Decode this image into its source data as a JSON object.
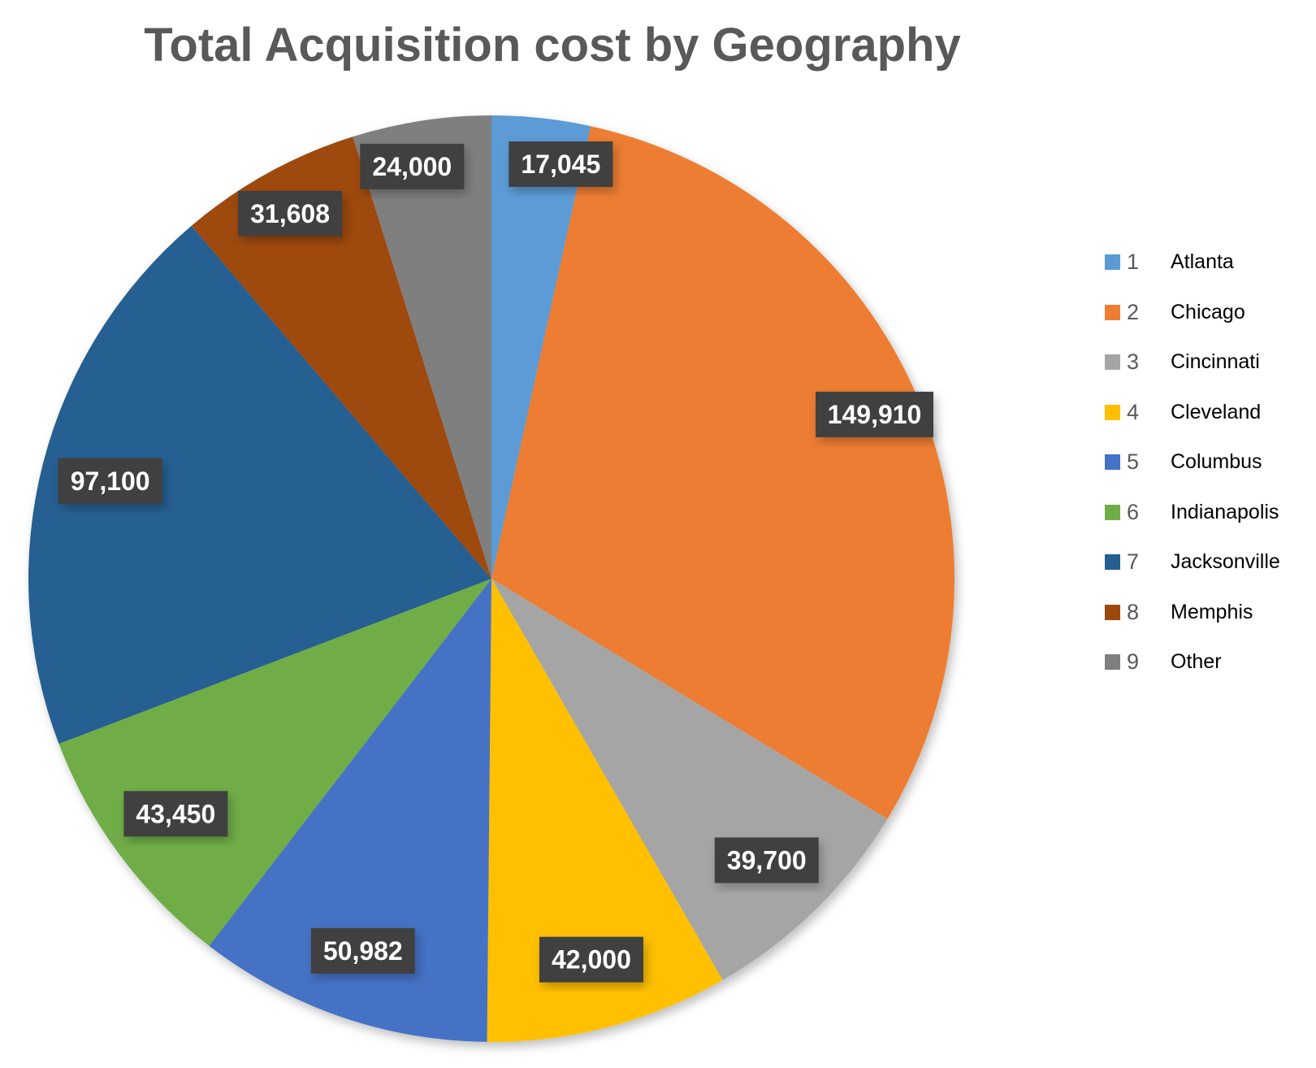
{
  "chart_data": {
    "type": "pie",
    "title": "Total Acquisition cost by Geography",
    "start_angle": "12 o'clock, clockwise",
    "legend_position": "right",
    "slices": [
      {
        "num": "1",
        "name": "Atlanta",
        "value": 17045,
        "label": "17,045",
        "color": "#5B9BD5"
      },
      {
        "num": "2",
        "name": "Chicago",
        "value": 149910,
        "label": "149,910",
        "color": "#ED7D31"
      },
      {
        "num": "3",
        "name": "Cincinnati",
        "value": 39700,
        "label": "39,700",
        "color": "#A5A5A5"
      },
      {
        "num": "4",
        "name": "Cleveland",
        "value": 42000,
        "label": "42,000",
        "color": "#FFC000"
      },
      {
        "num": "5",
        "name": "Columbus",
        "value": 50982,
        "label": "50,982",
        "color": "#4472C4"
      },
      {
        "num": "6",
        "name": "Indianapolis",
        "value": 43450,
        "label": "43,450",
        "color": "#70AD47"
      },
      {
        "num": "7",
        "name": "Jacksonville",
        "value": 97100,
        "label": "97,100",
        "color": "#255E91"
      },
      {
        "num": "8",
        "name": "Memphis",
        "value": 31608,
        "label": "31,608",
        "color": "#9E480E"
      },
      {
        "num": "9",
        "name": "Other",
        "value": 24000,
        "label": "24,000",
        "color": "#7F7F7F"
      }
    ]
  }
}
